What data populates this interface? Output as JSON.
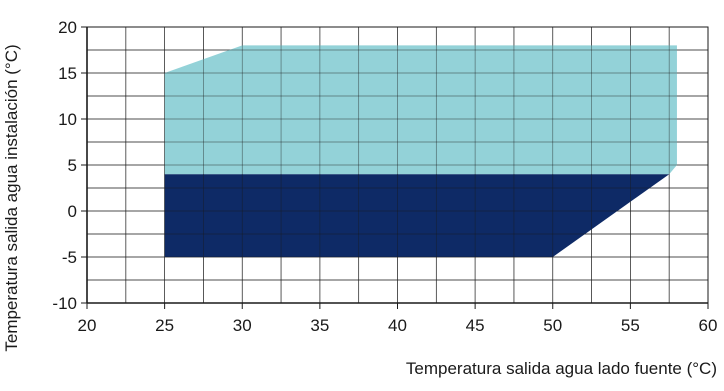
{
  "chart_data": {
    "type": "area",
    "xlabel": "Temperatura salida agua lado fuente (°C)",
    "ylabel": "Temperatura salida agua instalación (°C)",
    "xlim": [
      20,
      60
    ],
    "ylim": [
      -10,
      20
    ],
    "x_ticks": [
      "20",
      "25",
      "30",
      "35",
      "40",
      "45",
      "50",
      "55",
      "60"
    ],
    "y_ticks": [
      "20",
      "15",
      "10",
      "5",
      "0",
      "-5",
      "-10"
    ],
    "x_tick_values": [
      20,
      25,
      30,
      35,
      40,
      45,
      50,
      55,
      60
    ],
    "y_tick_values": [
      20,
      15,
      10,
      5,
      0,
      -5,
      -10
    ],
    "grid": true,
    "grid_minor_step": 2.5,
    "regions": [
      {
        "color": "#93d2d8",
        "points": [
          [
            25,
            4
          ],
          [
            25,
            15
          ],
          [
            30,
            18
          ],
          [
            58,
            18
          ],
          [
            58,
            5
          ],
          [
            57.5,
            4
          ]
        ]
      },
      {
        "color": "#0e2a66",
        "points": [
          [
            25,
            -5
          ],
          [
            25,
            4
          ],
          [
            57.5,
            4
          ],
          [
            50,
            -5
          ]
        ]
      }
    ]
  }
}
